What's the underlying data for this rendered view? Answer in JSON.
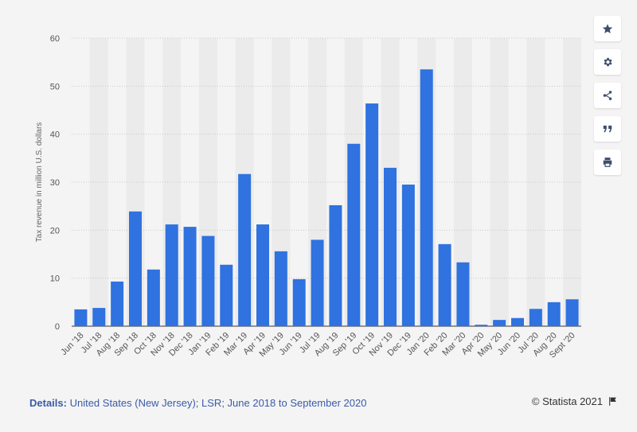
{
  "toolbar": {
    "buttons": [
      {
        "icon": "star-icon",
        "name": "favorite-button"
      },
      {
        "icon": "gear-icon",
        "name": "settings-button"
      },
      {
        "icon": "share-icon",
        "name": "share-button"
      },
      {
        "icon": "quote-icon",
        "name": "cite-button"
      },
      {
        "icon": "print-icon",
        "name": "print-button"
      }
    ]
  },
  "footer": {
    "details_label": "Details:",
    "details_text": " United States (New Jersey); LSR; June 2018 to September 2020",
    "credit": "© Statista 2021"
  },
  "colors": {
    "bar": "#2f72e0",
    "grid": "#c8c8c8",
    "band": "#ebebeb"
  },
  "chart_data": {
    "type": "bar",
    "ylabel": "Tax revenue in million U.S. dollars",
    "xlabel": "",
    "ylim": [
      0,
      60
    ],
    "yticks": [
      0,
      10,
      20,
      30,
      40,
      50,
      60
    ],
    "grid": true,
    "categories": [
      "Jun '18",
      "Jul '18",
      "Aug '18",
      "Sep '18",
      "Oct '18",
      "Nov '18",
      "Dec '18",
      "Jan '19",
      "Feb '19",
      "Mar '19",
      "Apr '19",
      "May '19",
      "Jun '19",
      "Jul '19",
      "Aug '19",
      "Sep '19",
      "Oct '19",
      "Nov '19",
      "Dec '19",
      "Jan '20",
      "Feb '20",
      "Mar '20",
      "Apr '20",
      "May '20",
      "Jun '20",
      "Jul '20",
      "Aug '20",
      "Sept '20"
    ],
    "values": [
      3.5,
      3.8,
      9.3,
      23.9,
      11.8,
      21.2,
      20.7,
      18.8,
      12.8,
      31.7,
      21.2,
      15.6,
      9.8,
      18.0,
      25.2,
      38.0,
      46.4,
      33.0,
      29.5,
      53.5,
      17.1,
      13.3,
      0.3,
      1.3,
      1.7,
      3.6,
      5.0,
      5.6
    ]
  }
}
